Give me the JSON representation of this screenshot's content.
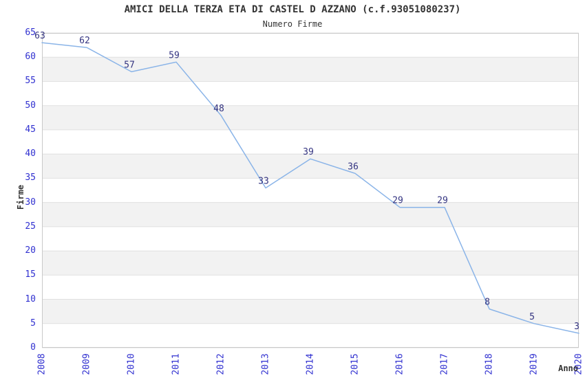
{
  "header": {
    "title": "AMICI DELLA TERZA ETA DI CASTEL D AZZANO (c.f.93051080237)",
    "subtitle": "Numero Firme"
  },
  "chart_data": {
    "type": "line",
    "title": "AMICI DELLA TERZA ETA DI CASTEL D AZZANO (c.f.93051080237)",
    "subtitle": "Numero Firme",
    "xlabel": "Anno",
    "ylabel": "Firme",
    "categories": [
      "2008",
      "2009",
      "2010",
      "2011",
      "2012",
      "2013",
      "2014",
      "2015",
      "2016",
      "2017",
      "2018",
      "2019",
      "2020"
    ],
    "series": [
      {
        "name": "Numero Firme",
        "values": [
          63,
          62,
          57,
          59,
          48,
          33,
          39,
          36,
          29,
          29,
          8,
          5,
          3
        ]
      }
    ],
    "point_labels": [
      "63",
      "62",
      "57",
      "59",
      "48",
      "33",
      "39",
      "36",
      "29",
      "29",
      "8",
      "5",
      "3"
    ],
    "ylim": [
      0,
      65
    ],
    "yticks": [
      0,
      5,
      10,
      15,
      20,
      25,
      30,
      35,
      40,
      45,
      50,
      55,
      60,
      65
    ],
    "grid": true,
    "banded_background": true,
    "legend": false,
    "colors": {
      "line": "#8ab4e8",
      "point_label": "#333380",
      "tick_label": "#3030d0",
      "text": "#333333",
      "band": "#f2f2f2",
      "grid": "#e0e0e0",
      "border": "#c9c9c9",
      "background": "#ffffff"
    }
  }
}
